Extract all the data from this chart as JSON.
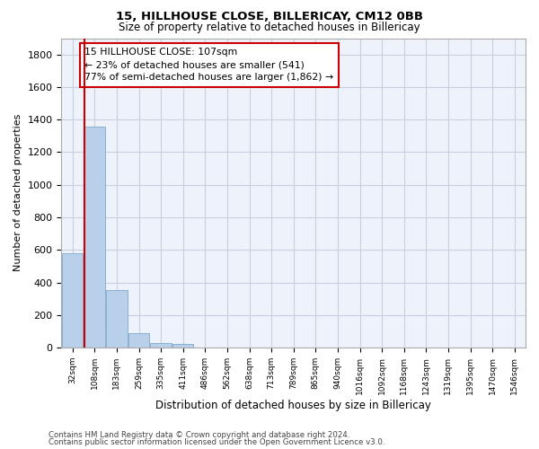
{
  "title1": "15, HILLHOUSE CLOSE, BILLERICAY, CM12 0BB",
  "title2": "Size of property relative to detached houses in Billericay",
  "xlabel": "Distribution of detached houses by size in Billericay",
  "ylabel": "Number of detached properties",
  "bar_labels": [
    "32sqm",
    "108sqm",
    "183sqm",
    "259sqm",
    "335sqm",
    "411sqm",
    "486sqm",
    "562sqm",
    "638sqm",
    "713sqm",
    "789sqm",
    "865sqm",
    "940sqm",
    "1016sqm",
    "1092sqm",
    "1168sqm",
    "1243sqm",
    "1319sqm",
    "1395sqm",
    "1470sqm",
    "1546sqm"
  ],
  "bar_values": [
    580,
    1355,
    355,
    90,
    30,
    20,
    0,
    0,
    0,
    0,
    0,
    0,
    0,
    0,
    0,
    0,
    0,
    0,
    0,
    0,
    0
  ],
  "bar_color": "#b8d0ea",
  "bar_edgecolor": "#8ab0d0",
  "ylim": [
    0,
    1900
  ],
  "yticks": [
    0,
    200,
    400,
    600,
    800,
    1000,
    1200,
    1400,
    1600,
    1800
  ],
  "property_line_color": "#cc0000",
  "annotation_text": "15 HILLHOUSE CLOSE: 107sqm\n← 23% of detached houses are smaller (541)\n77% of semi-detached houses are larger (1,862) →",
  "annotation_box_color": "#cc0000",
  "footer1": "Contains HM Land Registry data © Crown copyright and database right 2024.",
  "footer2": "Contains public sector information licensed under the Open Government Licence v3.0.",
  "background_color": "#eef2fa",
  "grid_color": "#c8cfe0"
}
